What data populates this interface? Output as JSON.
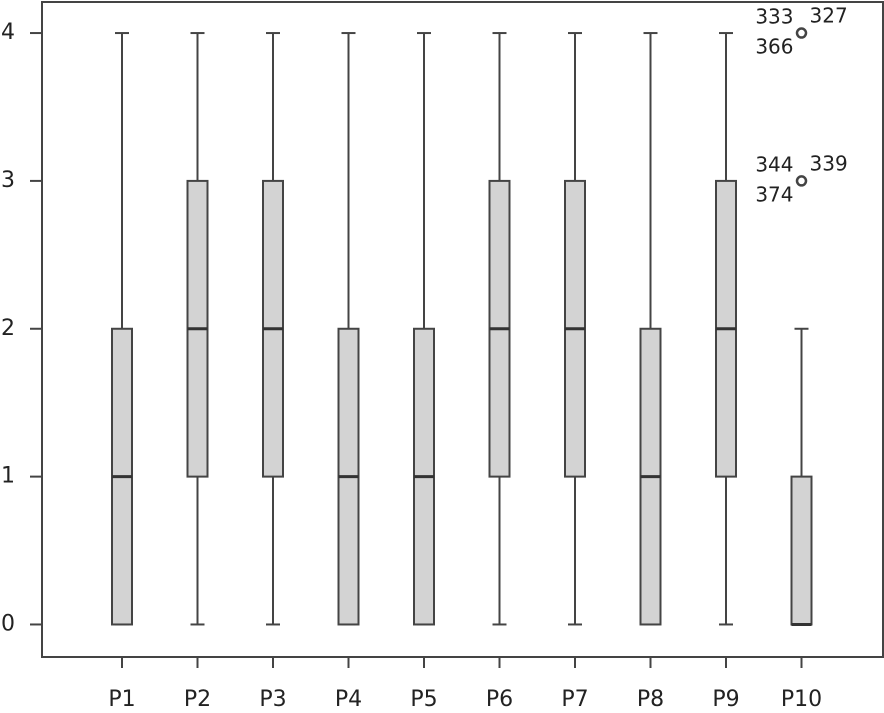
{
  "chart_data": {
    "type": "box",
    "categories": [
      "P1",
      "P2",
      "P3",
      "P4",
      "P5",
      "P6",
      "P7",
      "P8",
      "P9",
      "P10"
    ],
    "boxes": [
      {
        "min": 0,
        "q1": 0,
        "median": 1,
        "q3": 2,
        "max": 4
      },
      {
        "min": 0,
        "q1": 1,
        "median": 2,
        "q3": 3,
        "max": 4
      },
      {
        "min": 0,
        "q1": 1,
        "median": 2,
        "q3": 3,
        "max": 4
      },
      {
        "min": 0,
        "q1": 0,
        "median": 1,
        "q3": 2,
        "max": 4
      },
      {
        "min": 0,
        "q1": 0,
        "median": 1,
        "q3": 2,
        "max": 4
      },
      {
        "min": 0,
        "q1": 1,
        "median": 2,
        "q3": 3,
        "max": 4
      },
      {
        "min": 0,
        "q1": 1,
        "median": 2,
        "q3": 3,
        "max": 4
      },
      {
        "min": 0,
        "q1": 0,
        "median": 1,
        "q3": 2,
        "max": 4
      },
      {
        "min": 0,
        "q1": 1,
        "median": 2,
        "q3": 3,
        "max": 4
      },
      {
        "min": 0,
        "q1": 0,
        "median": 0,
        "q3": 1,
        "max": 2
      }
    ],
    "outliers": [
      [],
      [],
      [],
      [],
      [],
      [],
      [],
      [],
      [],
      [
        {
          "value": 3,
          "labels": [
            "344",
            "339",
            "374"
          ]
        },
        {
          "value": 4,
          "labels": [
            "333",
            "327",
            "366"
          ]
        }
      ]
    ],
    "color": "#d3d3d3",
    "ylim": [
      -0.22,
      4.21
    ],
    "yticks": [
      0,
      1,
      2,
      3,
      4
    ]
  }
}
